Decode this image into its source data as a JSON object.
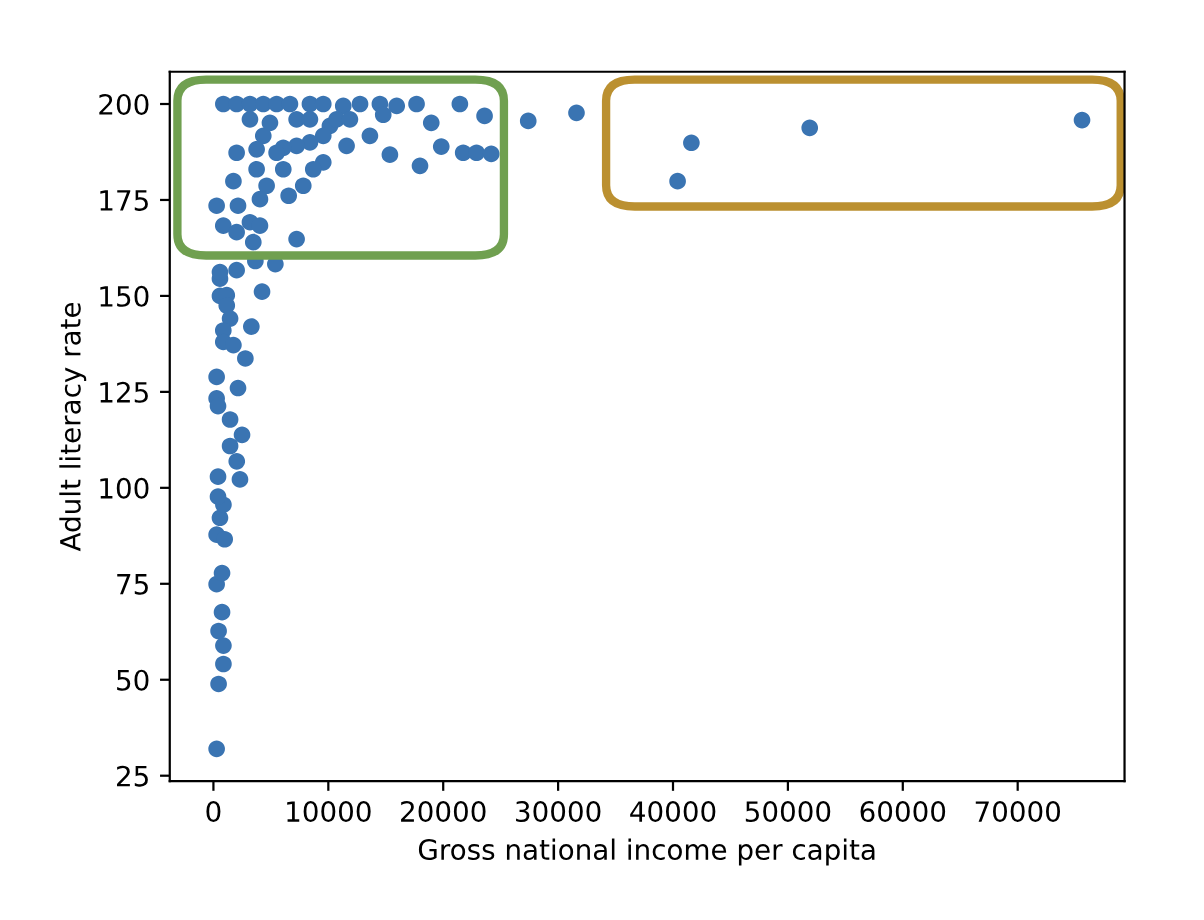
{
  "chart_data": {
    "type": "scatter",
    "xlabel": "Gross national income per capita",
    "ylabel": "Adult literacy rate",
    "marker": "circle",
    "xlim": [
      -3800,
      79300
    ],
    "ylim": [
      23.6,
      208.4
    ],
    "xticks": [
      0,
      10000,
      20000,
      30000,
      40000,
      50000,
      60000,
      70000
    ],
    "yticks": [
      25,
      50,
      75,
      100,
      125,
      150,
      175,
      200
    ],
    "series": [
      {
        "color": "#3a74b2",
        "x": [
          280,
          450,
          870,
          870,
          450,
          750,
          280,
          750,
          280,
          980,
          570,
          870,
          570,
          570,
          4230,
          1160,
          1160,
          1450,
          3300,
          860,
          860,
          1740,
          2780,
          280,
          2140,
          280,
          400,
          1450,
          2490,
          1450,
          2030,
          400,
          2310,
          400,
          864,
          2020,
          3180,
          4340,
          5500,
          6660,
          8400,
          9560,
          11300,
          12760,
          14490,
          15950,
          17680,
          21450,
          23600,
          18960,
          13620,
          11590,
          10140,
          9560,
          8400,
          7240,
          6080,
          5500,
          4340,
          3180,
          4920,
          3760,
          2020,
          7240,
          8400,
          15360,
          17980,
          19830,
          21740,
          22900,
          24180,
          10720,
          11880,
          14780,
          3760,
          6080,
          1740,
          4630,
          7820,
          9560,
          8690,
          4050,
          2140,
          6550,
          280,
          860,
          3180,
          4050,
          7240,
          3470,
          2020,
          5390,
          3650,
          570,
          2020,
          27400,
          31600,
          41600,
          40400,
          51900,
          75600
        ],
        "values": [
          32,
          48.9,
          54.1,
          58.9,
          62.7,
          67.6,
          74.9,
          77.8,
          87.8,
          86.6,
          92.2,
          95.6,
          154.5,
          150,
          151.1,
          150.2,
          147.5,
          144.1,
          142,
          141,
          138,
          137.2,
          133.7,
          128.9,
          126,
          123.3,
          121.3,
          117.8,
          113.8,
          110.9,
          106.9,
          102.9,
          102.2,
          97.7,
          200,
          200,
          200,
          200,
          200,
          200,
          200,
          200,
          199.5,
          200,
          200,
          199.5,
          200,
          200,
          196.9,
          195.1,
          191.7,
          189.1,
          194.3,
          191.7,
          190,
          189.1,
          188.6,
          187.3,
          191.7,
          196,
          195.1,
          188.2,
          187.3,
          196,
          196,
          186.8,
          183.9,
          188.9,
          187.3,
          187.3,
          187,
          196,
          196,
          197.2,
          183,
          183,
          179.9,
          178.7,
          178.7,
          184.8,
          183,
          175.2,
          173.5,
          176.1,
          173.5,
          168.3,
          169.2,
          168.3,
          164.8,
          164,
          166.6,
          158.3,
          159.1,
          156.2,
          156.7,
          195.6,
          197.7,
          189.9,
          179.9,
          193.8,
          195.8
        ]
      }
    ]
  }
}
